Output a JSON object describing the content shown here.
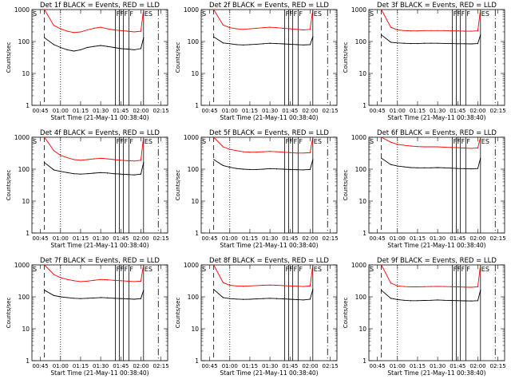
{
  "figure": {
    "xlabel": "Start Time (21-May-11 00:38:40)",
    "ylabel": "Counts/sec",
    "x_tick_labels": [
      "00:45",
      "01:00",
      "01:15",
      "01:30",
      "01:45",
      "02:00",
      "02:15"
    ],
    "y_tick_labels": [
      "1",
      "10",
      "100",
      "1000"
    ],
    "colors": {
      "events": "#000000",
      "lld": "#ff0000",
      "axes": "#000000"
    }
  },
  "chart_data": [
    {
      "type": "line",
      "panel": 1,
      "title": "Det 1f BLACK = Events, RED = LLD",
      "markers": {
        "left": "S",
        "right": "ES",
        "mid": [
          "F",
          "F",
          "F",
          "F"
        ]
      },
      "xlim": [
        "00:38:40",
        "02:20"
      ],
      "ylim": [
        1,
        1000
      ],
      "yscale": "log",
      "x": [
        "00:48",
        "00:55",
        "01:00",
        "01:05",
        "01:10",
        "01:15",
        "01:20",
        "01:25",
        "01:30",
        "01:35",
        "01:40",
        "01:45",
        "01:50",
        "01:55",
        "02:00",
        "02:02"
      ],
      "series": [
        {
          "name": "LLD",
          "values": [
            1000,
            320,
            250,
            210,
            190,
            200,
            230,
            260,
            280,
            250,
            230,
            220,
            210,
            200,
            210,
            1000
          ]
        },
        {
          "name": "Events",
          "values": [
            130,
            80,
            65,
            55,
            50,
            55,
            65,
            70,
            75,
            70,
            65,
            60,
            58,
            55,
            60,
            130
          ]
        }
      ]
    },
    {
      "type": "line",
      "panel": 2,
      "title": "Det 2f BLACK = Events, RED = LLD",
      "markers": {
        "left": "S",
        "right": "ES",
        "mid": [
          "F",
          "F",
          "F",
          "F"
        ]
      },
      "xlim": [
        "00:38:40",
        "02:20"
      ],
      "ylim": [
        1,
        1000
      ],
      "yscale": "log",
      "x": [
        "00:48",
        "00:55",
        "01:00",
        "01:05",
        "01:10",
        "01:15",
        "01:20",
        "01:25",
        "01:30",
        "01:35",
        "01:40",
        "01:45",
        "01:50",
        "01:55",
        "02:00",
        "02:02"
      ],
      "series": [
        {
          "name": "LLD",
          "values": [
            1000,
            330,
            270,
            250,
            240,
            250,
            260,
            270,
            280,
            270,
            260,
            250,
            240,
            230,
            240,
            1000
          ]
        },
        {
          "name": "Events",
          "values": [
            140,
            90,
            85,
            80,
            78,
            80,
            82,
            85,
            88,
            86,
            84,
            82,
            80,
            78,
            80,
            140
          ]
        }
      ]
    },
    {
      "type": "line",
      "panel": 3,
      "title": "Det 3f BLACK = Events, RED = LLD",
      "markers": {
        "left": "S",
        "right": "ES",
        "mid": [
          "F",
          "F",
          "F",
          "F"
        ]
      },
      "xlim": [
        "00:38:40",
        "02:20"
      ],
      "ylim": [
        1,
        1000
      ],
      "yscale": "log",
      "x": [
        "00:48",
        "00:55",
        "01:00",
        "01:05",
        "01:10",
        "01:15",
        "01:20",
        "01:25",
        "01:30",
        "01:35",
        "01:40",
        "01:45",
        "01:50",
        "01:55",
        "02:00",
        "02:02"
      ],
      "series": [
        {
          "name": "LLD",
          "values": [
            1000,
            280,
            230,
            220,
            215,
            215,
            220,
            220,
            220,
            220,
            215,
            215,
            210,
            210,
            215,
            1000
          ]
        },
        {
          "name": "Events",
          "values": [
            160,
            95,
            90,
            88,
            86,
            86,
            88,
            88,
            88,
            87,
            86,
            85,
            85,
            84,
            86,
            160
          ]
        }
      ]
    },
    {
      "type": "line",
      "panel": 4,
      "title": "Det 4f BLACK = Events, RED = LLD",
      "markers": {
        "left": "S",
        "right": "ES",
        "mid": [
          "F",
          "F",
          "F",
          "F"
        ]
      },
      "xlim": [
        "00:38:40",
        "02:20"
      ],
      "ylim": [
        1,
        1000
      ],
      "yscale": "log",
      "x": [
        "00:48",
        "00:55",
        "01:00",
        "01:05",
        "01:10",
        "01:15",
        "01:20",
        "01:25",
        "01:30",
        "01:35",
        "01:40",
        "01:45",
        "01:50",
        "01:55",
        "02:00",
        "02:02"
      ],
      "series": [
        {
          "name": "LLD",
          "values": [
            1000,
            380,
            270,
            230,
            200,
            190,
            200,
            210,
            220,
            210,
            200,
            190,
            185,
            180,
            190,
            1000
          ]
        },
        {
          "name": "Events",
          "values": [
            160,
            95,
            85,
            78,
            72,
            70,
            72,
            75,
            78,
            76,
            72,
            70,
            68,
            66,
            70,
            160
          ]
        }
      ]
    },
    {
      "type": "line",
      "panel": 5,
      "title": "Det 5f BLACK = Events, RED = LLD",
      "markers": {
        "left": "S",
        "right": "ES",
        "mid": [
          "F",
          "F",
          "F",
          "F"
        ]
      },
      "xlim": [
        "00:38:40",
        "02:20"
      ],
      "ylim": [
        1,
        1000
      ],
      "yscale": "log",
      "x": [
        "00:48",
        "00:55",
        "01:00",
        "01:05",
        "01:10",
        "01:15",
        "01:20",
        "01:25",
        "01:30",
        "01:35",
        "01:40",
        "01:45",
        "01:50",
        "01:55",
        "02:00",
        "02:02"
      ],
      "series": [
        {
          "name": "LLD",
          "values": [
            1000,
            500,
            420,
            380,
            350,
            340,
            340,
            350,
            360,
            350,
            340,
            330,
            320,
            320,
            330,
            1000
          ]
        },
        {
          "name": "Events",
          "values": [
            200,
            130,
            115,
            105,
            100,
            98,
            98,
            100,
            104,
            102,
            100,
            98,
            96,
            95,
            98,
            200
          ]
        }
      ]
    },
    {
      "type": "line",
      "panel": 6,
      "title": "Det 6f BLACK = Events, RED = LLD",
      "markers": {
        "left": "S",
        "right": "ES",
        "mid": [
          "F",
          "F",
          "F",
          "F"
        ]
      },
      "xlim": [
        "00:38:40",
        "02:20"
      ],
      "ylim": [
        1,
        1000
      ],
      "yscale": "log",
      "x": [
        "00:48",
        "00:55",
        "01:00",
        "01:05",
        "01:10",
        "01:15",
        "01:20",
        "01:25",
        "01:30",
        "01:35",
        "01:40",
        "01:45",
        "01:50",
        "01:55",
        "02:00",
        "02:02"
      ],
      "series": [
        {
          "name": "LLD",
          "values": [
            1000,
            700,
            600,
            560,
            530,
            510,
            500,
            500,
            500,
            490,
            480,
            470,
            460,
            450,
            460,
            1000
          ]
        },
        {
          "name": "Events",
          "values": [
            220,
            140,
            125,
            118,
            112,
            110,
            110,
            110,
            112,
            110,
            108,
            105,
            104,
            102,
            105,
            220
          ]
        }
      ]
    },
    {
      "type": "line",
      "panel": 7,
      "title": "Det 7f BLACK = Events, RED = LLD",
      "markers": {
        "left": "S",
        "right": "ES",
        "mid": [
          "F",
          "F",
          "F",
          "F"
        ]
      },
      "xlim": [
        "00:38:40",
        "02:20"
      ],
      "ylim": [
        1,
        1000
      ],
      "yscale": "log",
      "x": [
        "00:48",
        "00:55",
        "01:00",
        "01:05",
        "01:10",
        "01:15",
        "01:20",
        "01:25",
        "01:30",
        "01:35",
        "01:40",
        "01:45",
        "01:50",
        "01:55",
        "02:00",
        "02:02"
      ],
      "series": [
        {
          "name": "LLD",
          "values": [
            1000,
            500,
            400,
            350,
            320,
            300,
            310,
            330,
            350,
            340,
            330,
            320,
            310,
            300,
            310,
            1000
          ]
        },
        {
          "name": "Events",
          "values": [
            160,
            110,
            100,
            95,
            90,
            88,
            90,
            92,
            95,
            93,
            90,
            88,
            86,
            84,
            88,
            160
          ]
        }
      ]
    },
    {
      "type": "line",
      "panel": 8,
      "title": "Det 8f BLACK = Events, RED = LLD",
      "markers": {
        "left": "S",
        "right": "ES",
        "mid": [
          "F",
          "F",
          "F",
          "F"
        ]
      },
      "xlim": [
        "00:38:40",
        "02:20"
      ],
      "ylim": [
        1,
        1000
      ],
      "yscale": "log",
      "x": [
        "00:48",
        "00:55",
        "01:00",
        "01:05",
        "01:10",
        "01:15",
        "01:20",
        "01:25",
        "01:30",
        "01:35",
        "01:40",
        "01:45",
        "01:50",
        "01:55",
        "02:00",
        "02:02"
      ],
      "series": [
        {
          "name": "LLD",
          "values": [
            1000,
            280,
            230,
            220,
            215,
            220,
            225,
            230,
            235,
            230,
            225,
            220,
            215,
            210,
            220,
            1000
          ]
        },
        {
          "name": "Events",
          "values": [
            170,
            95,
            88,
            85,
            83,
            84,
            86,
            88,
            90,
            88,
            86,
            84,
            82,
            80,
            84,
            170
          ]
        }
      ]
    },
    {
      "type": "line",
      "panel": 9,
      "title": "Det 9f BLACK = Events, RED = LLD",
      "markers": {
        "left": "S",
        "right": "ES",
        "mid": [
          "F",
          "F",
          "F",
          "F"
        ]
      },
      "xlim": [
        "00:38:40",
        "02:20"
      ],
      "ylim": [
        1,
        1000
      ],
      "yscale": "log",
      "x": [
        "00:48",
        "00:55",
        "01:00",
        "01:05",
        "01:10",
        "01:15",
        "01:20",
        "01:25",
        "01:30",
        "01:35",
        "01:40",
        "01:45",
        "01:50",
        "01:55",
        "02:00",
        "02:02"
      ],
      "series": [
        {
          "name": "LLD",
          "values": [
            1000,
            270,
            220,
            210,
            205,
            205,
            208,
            210,
            212,
            210,
            208,
            205,
            202,
            200,
            205,
            1000
          ]
        },
        {
          "name": "Events",
          "values": [
            160,
            90,
            82,
            78,
            76,
            76,
            77,
            78,
            80,
            78,
            77,
            76,
            75,
            74,
            76,
            160
          ]
        }
      ]
    }
  ]
}
